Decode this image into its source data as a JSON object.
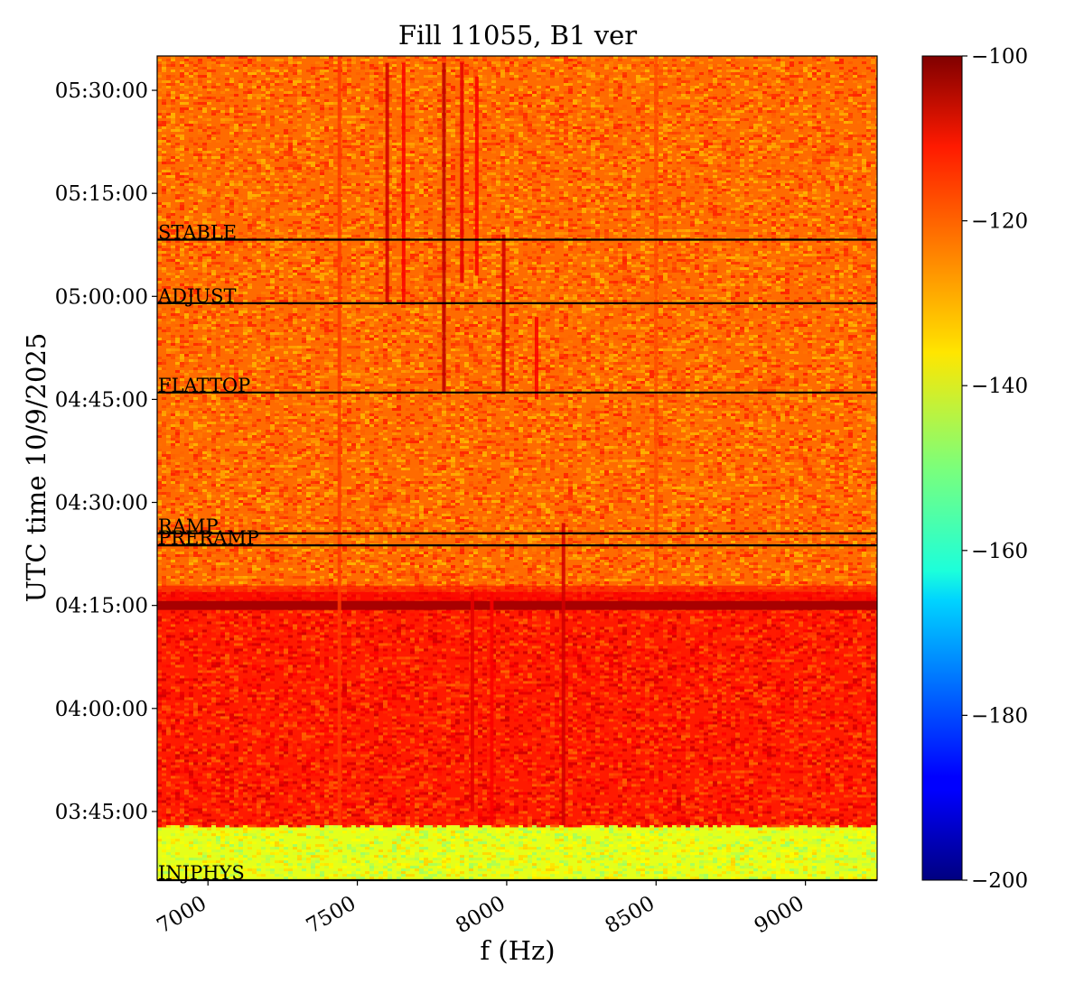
{
  "chart_data": {
    "type": "heatmap",
    "title": "Fill 11055, B1 ver",
    "xlabel": "f (Hz)",
    "ylabel": "UTC time 10/9/2025",
    "xlim": [
      6830,
      9240
    ],
    "ylim": [
      "03:35:00",
      "05:35:00"
    ],
    "x_ticks": [
      7000,
      7500,
      8000,
      8500,
      9000
    ],
    "y_ticks": [
      "03:45:00",
      "04:00:00",
      "04:15:00",
      "04:30:00",
      "04:45:00",
      "05:00:00",
      "05:15:00",
      "05:30:00"
    ],
    "colorbar": {
      "colormap": "jet",
      "range": [
        -200,
        -100
      ],
      "ticks": [
        -100,
        -120,
        -140,
        -160,
        -180,
        -200
      ]
    },
    "background_levels": [
      {
        "from": "03:35:00",
        "to": "03:43:00",
        "level": -140
      },
      {
        "from": "03:43:00",
        "to": "04:17:00",
        "level": -115
      },
      {
        "from": "04:17:00",
        "to": "05:35:00",
        "level": -123
      }
    ],
    "strong_band": {
      "time": "04:15:00",
      "level": -104
    },
    "phase_markers": [
      {
        "label": "INJPHYS",
        "time": "03:35:00"
      },
      {
        "label": "PRERAMP",
        "time": "04:23:45"
      },
      {
        "label": "RAMP",
        "time": "04:25:30"
      },
      {
        "label": "FLATTOP",
        "time": "04:46:00"
      },
      {
        "label": "ADJUST",
        "time": "04:59:00"
      },
      {
        "label": "STABLE",
        "time": "05:08:15"
      }
    ],
    "lines": [
      {
        "f": 7440,
        "from": "03:43:00",
        "to": "05:35:00",
        "level": -118
      },
      {
        "f": 7600,
        "from": "04:59:00",
        "to": "05:34:00",
        "level": -108
      },
      {
        "f": 7655,
        "from": "04:59:00",
        "to": "05:34:00",
        "level": -112
      },
      {
        "f": 7790,
        "from": "04:46:00",
        "to": "05:34:00",
        "level": -106
      },
      {
        "f": 7850,
        "from": "05:02:00",
        "to": "05:34:00",
        "level": -110
      },
      {
        "f": 7900,
        "from": "05:03:00",
        "to": "05:32:00",
        "level": -112
      },
      {
        "f": 7990,
        "from": "04:46:00",
        "to": "05:09:00",
        "level": -108
      },
      {
        "f": 8100,
        "from": "04:45:00",
        "to": "04:57:00",
        "level": -112
      },
      {
        "f": 8190,
        "from": "03:43:00",
        "to": "04:27:00",
        "level": -108
      },
      {
        "f": 8500,
        "from": "04:17:00",
        "to": "05:35:00",
        "level": -120
      },
      {
        "f": 7885,
        "from": "03:45:00",
        "to": "04:17:00",
        "level": -110
      },
      {
        "f": 7950,
        "from": "03:43:00",
        "to": "04:17:00",
        "level": -112
      }
    ]
  }
}
